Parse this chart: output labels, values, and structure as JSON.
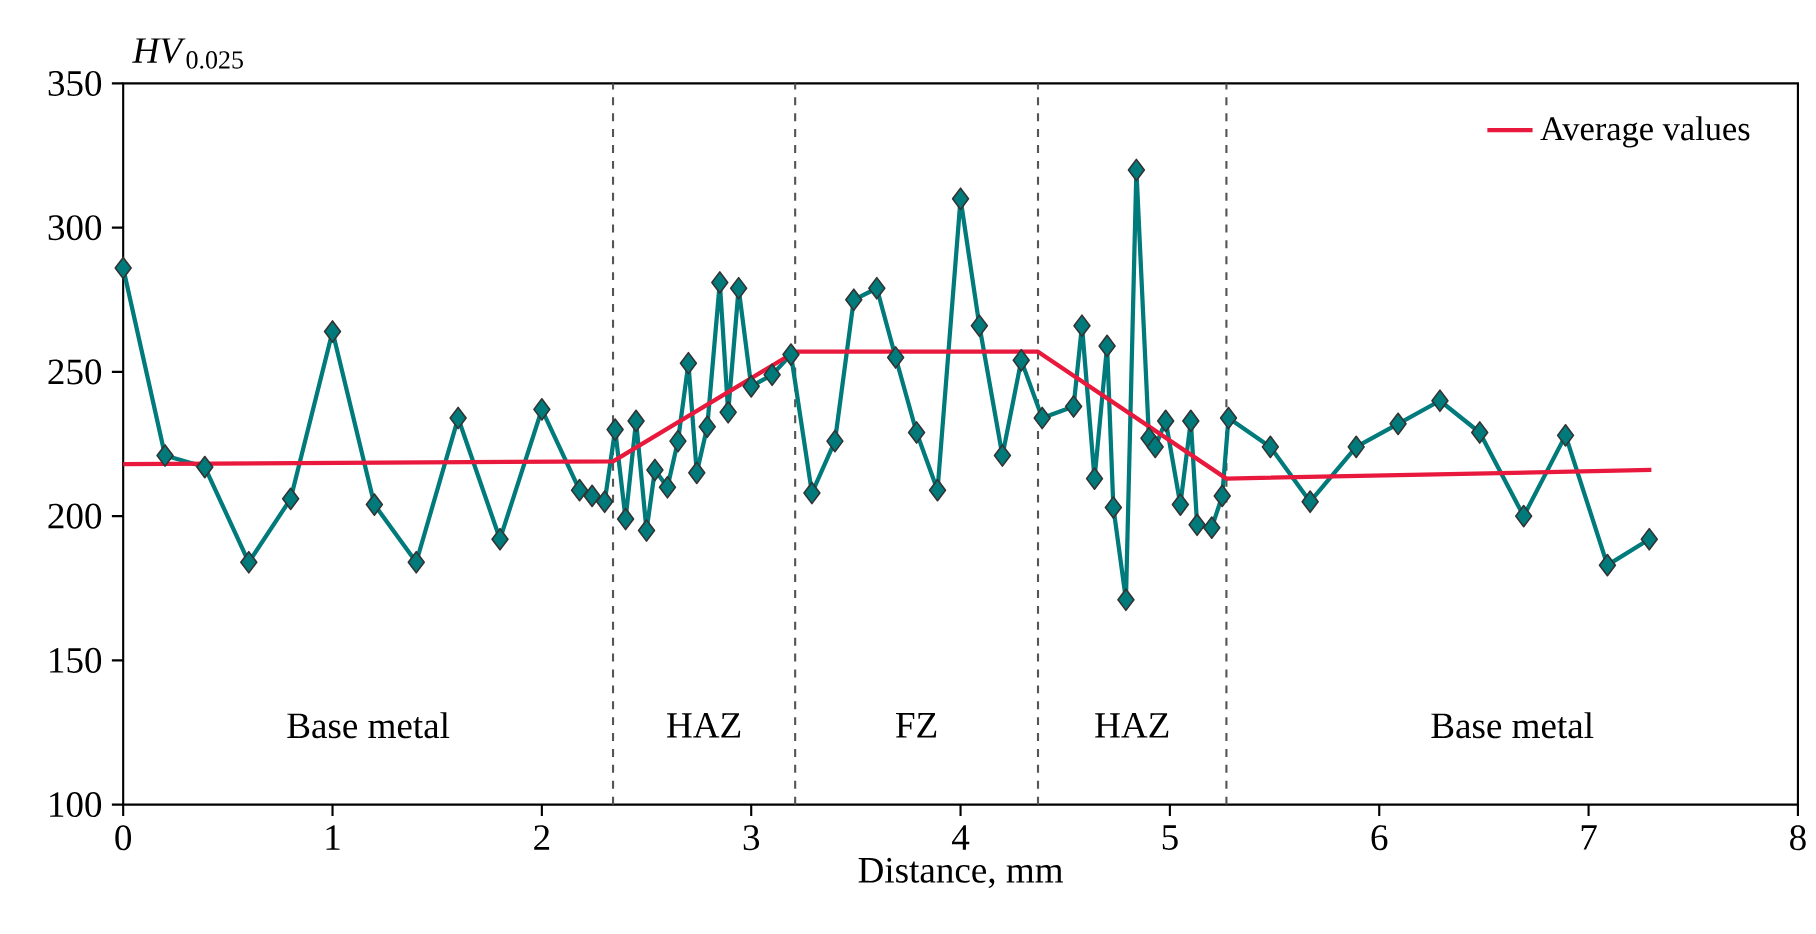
{
  "chart_data": {
    "type": "line",
    "xlabel": "Distance, mm",
    "ylabel": "*HV*$_{0.025}$",
    "xlim": [
      0,
      8
    ],
    "ylim": [
      100,
      350
    ],
    "xticks": [
      0,
      1,
      2,
      3,
      4,
      5,
      6,
      7,
      8
    ],
    "yticks": [
      100,
      150,
      200,
      250,
      300,
      350
    ],
    "grid": false,
    "legend": "top right",
    "series": [
      {
        "color": "#007a7a",
        "marker": "diamond",
        "x": [
          0,
          0.2,
          0.39,
          0.6,
          0.8,
          1.0,
          1.2,
          1.4,
          1.6,
          1.8,
          2.0,
          2.18,
          2.24,
          2.3,
          2.35,
          2.4,
          2.45,
          2.5,
          2.54,
          2.6,
          2.65,
          2.7,
          2.74,
          2.79,
          2.85,
          2.89,
          2.94,
          3.0,
          3.1,
          3.19,
          3.29,
          3.4,
          3.49,
          3.6,
          3.69,
          3.79,
          3.89,
          4.0,
          4.09,
          4.2,
          4.29,
          4.39,
          4.54,
          4.58,
          4.64,
          4.7,
          4.73,
          4.79,
          4.84,
          4.9,
          4.93,
          4.98,
          5.05,
          5.1,
          5.13,
          5.2,
          5.25,
          5.28,
          5.48,
          5.67,
          5.89,
          6.09,
          6.29,
          6.48,
          6.69,
          6.89,
          7.09,
          7.29
        ],
        "values": [
          286,
          221,
          217,
          184,
          206,
          264,
          204,
          184,
          234,
          192,
          237,
          209,
          207,
          205,
          230,
          199,
          233,
          195,
          216,
          210,
          226,
          253,
          215,
          231,
          281,
          236,
          279,
          245,
          249,
          256,
          208,
          226,
          275,
          279,
          255,
          229,
          209,
          310,
          266,
          221,
          254,
          234,
          238,
          266,
          213,
          259,
          203,
          171,
          320,
          227,
          224,
          233,
          204,
          233,
          197,
          196,
          207,
          234,
          224,
          205,
          224,
          232,
          240,
          229,
          200,
          228,
          183,
          192
        ]
      },
      {
        "name": "Average values",
        "color": "#e8193c",
        "marker": "none",
        "x": [
          0,
          2.34,
          3.21,
          4.37,
          5.27,
          7.3
        ],
        "values": [
          218,
          219,
          257,
          257,
          213,
          216
        ]
      }
    ],
    "ref_lines": [
      {
        "axis": "x",
        "value": 2.34,
        "line_style": "dashed",
        "color": "#555555"
      },
      {
        "axis": "x",
        "value": 3.21,
        "line_style": "dashed",
        "color": "#555555"
      },
      {
        "axis": "x",
        "value": 4.37,
        "line_style": "dashed",
        "color": "#555555"
      },
      {
        "axis": "x",
        "value": 5.27,
        "line_style": "dashed",
        "color": "#555555"
      }
    ],
    "annotations": [
      "Base metal",
      "HAZ",
      "FZ",
      "HAZ",
      "Base metal"
    ]
  }
}
